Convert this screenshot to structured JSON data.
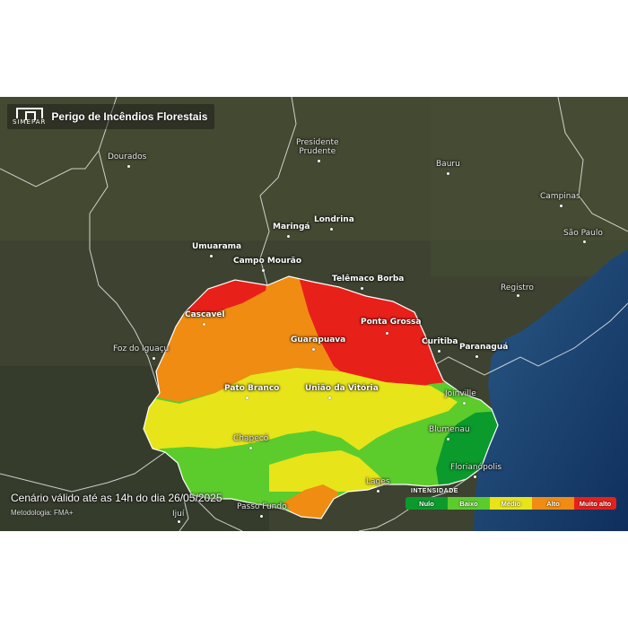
{
  "header": {
    "logo_text": "SIMEPAR",
    "title": "Perigo de Incêndios Florestais"
  },
  "footer": {
    "scenario": "Cenário válido até as 14h do dia 26/05/2025",
    "methodology": "Metodologia: FMA+"
  },
  "legend": {
    "title": "INTENSIDADE",
    "items": [
      {
        "label": "Nulo",
        "color": "#0b9a2c"
      },
      {
        "label": "Baixo",
        "color": "#5ccc2c"
      },
      {
        "label": "Médio",
        "color": "#e7e41a"
      },
      {
        "label": "Alto",
        "color": "#f08c12"
      },
      {
        "label": "Muito alto",
        "color": "#e8201a"
      }
    ]
  },
  "cities": [
    {
      "name": "Presidente\nPrudente",
      "label_1": "Presidente",
      "label_2": "Prudente"
    },
    {
      "name": "Dourados"
    },
    {
      "name": "Bauru"
    },
    {
      "name": "Campinas"
    },
    {
      "name": "São Paulo"
    },
    {
      "name": "Registro"
    },
    {
      "name": "Londrina"
    },
    {
      "name": "Maringá"
    },
    {
      "name": "Umuarama"
    },
    {
      "name": "Campo Mourão"
    },
    {
      "name": "Telêmaco Borba"
    },
    {
      "name": "Cascavel"
    },
    {
      "name": "Ponta Grossa"
    },
    {
      "name": "Foz do Iguaçu"
    },
    {
      "name": "Guarapuava"
    },
    {
      "name": "Curitiba"
    },
    {
      "name": "Paranaguá"
    },
    {
      "name": "Pato Branco"
    },
    {
      "name": "União da Vitória"
    },
    {
      "name": "Joinville"
    },
    {
      "name": "Chapecó"
    },
    {
      "name": "Blumenau"
    },
    {
      "name": "Florianópolis"
    },
    {
      "name": "Lages"
    },
    {
      "name": "Passo Fundo"
    },
    {
      "name": "Ijuí"
    }
  ]
}
